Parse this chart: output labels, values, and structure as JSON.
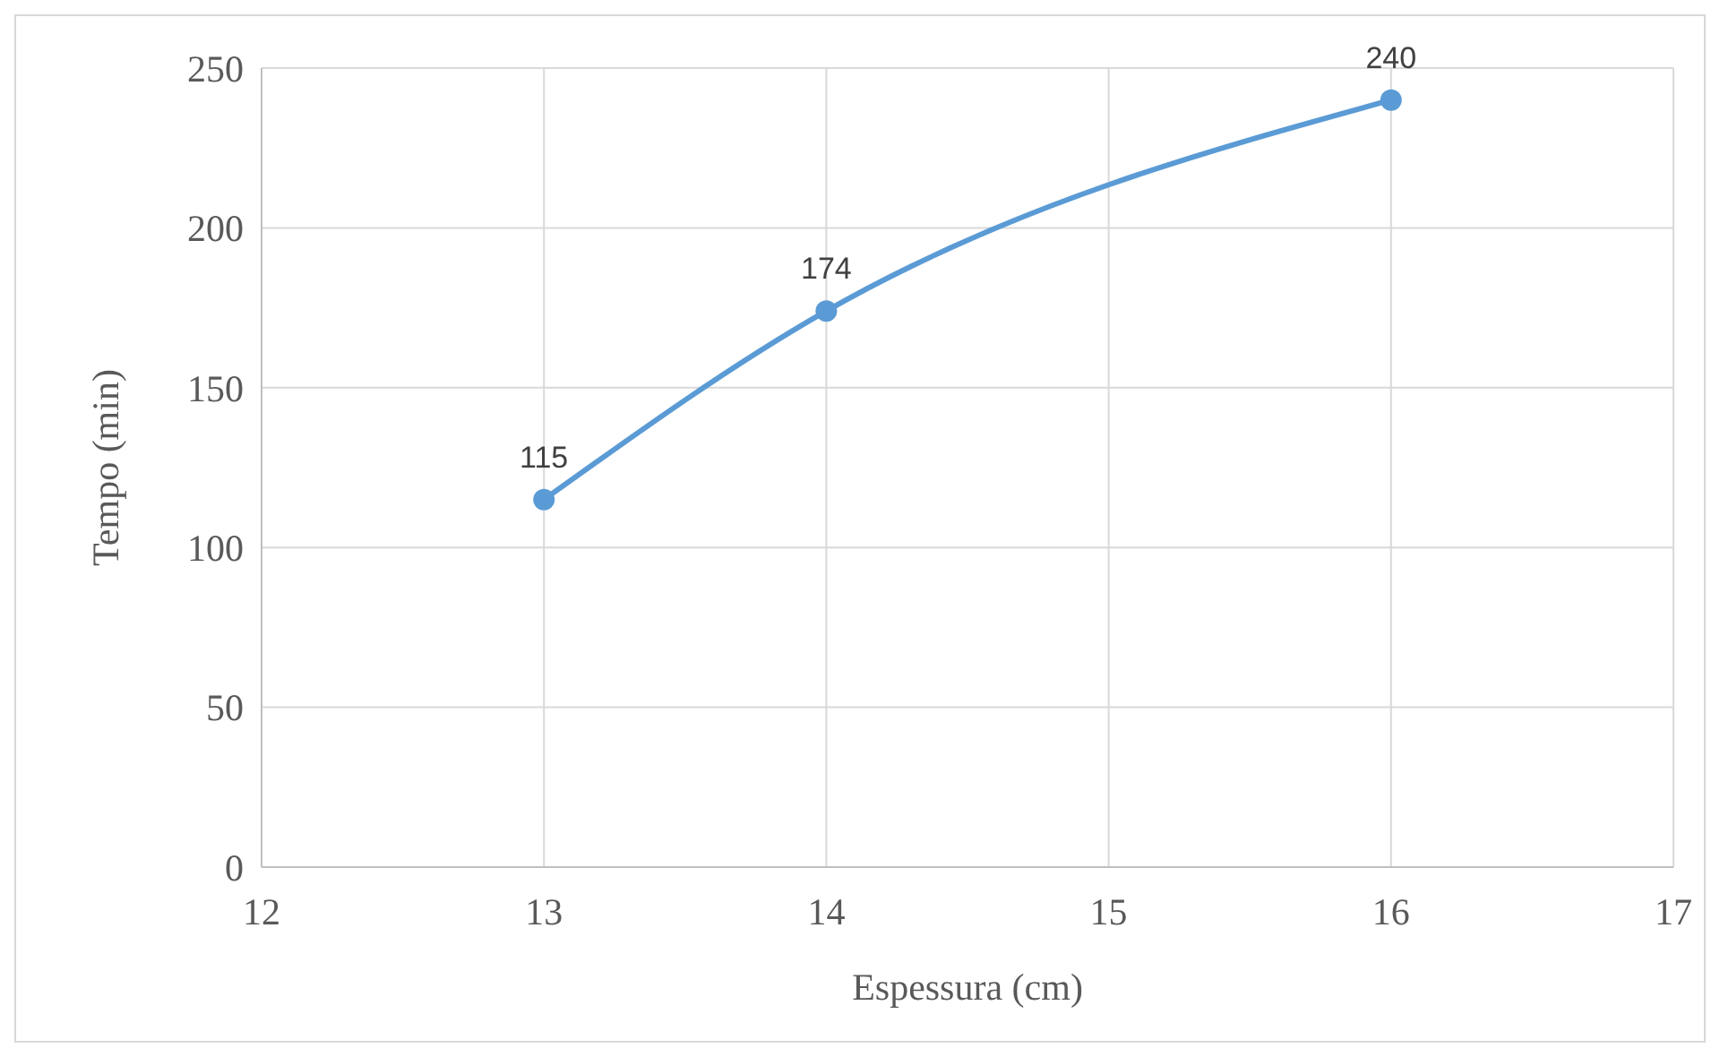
{
  "chart_data": {
    "type": "line",
    "xlabel": "Espessura (cm)",
    "ylabel": "Tempo (min)",
    "x": [
      13,
      14,
      16
    ],
    "series": [
      {
        "color": "#5b9bd5",
        "values": [
          115,
          174,
          240
        ]
      }
    ],
    "xlim": [
      12,
      17
    ],
    "xticks": [
      12,
      13,
      14,
      15,
      16,
      17
    ],
    "ylim": [
      0,
      250
    ],
    "yticks": [
      0,
      50,
      100,
      150,
      200,
      250
    ],
    "grid": true,
    "marker": "circle",
    "line_style": "solid",
    "data_labels": true
  }
}
